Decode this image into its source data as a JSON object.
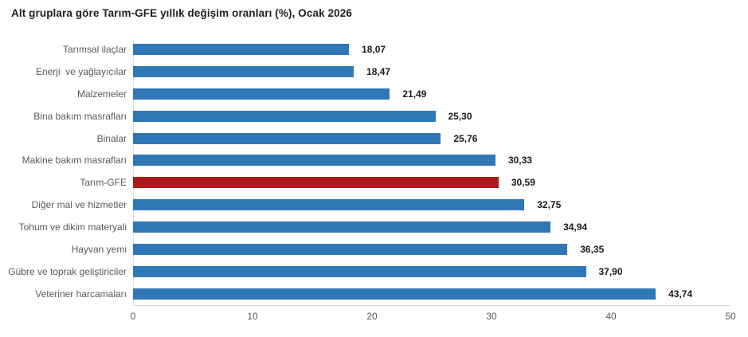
{
  "title": "Alt gruplara göre Tarım-GFE yıllık değişim oranları (%), Ocak 2026",
  "chart_data": {
    "type": "bar",
    "orientation": "horizontal",
    "title": "Alt gruplara göre Tarım-GFE yıllık değişim oranları (%), Ocak 2026",
    "categories": [
      "Tarımsal ilaçlar",
      "Enerji  ve yağlayıcılar",
      "Malzemeler",
      "Bina bakım masrafları",
      "Binalar",
      "Makine bakım masrafları",
      "Tarım-GFE",
      "Diğer mal ve hizmetler",
      "Tohum ve dikim materyali",
      "Hayvan yemi",
      "Gübre ve toprak geliştiriciler",
      "Veteriner harcamaları"
    ],
    "values": [
      18.07,
      18.47,
      21.49,
      25.3,
      25.76,
      30.33,
      30.59,
      32.75,
      34.94,
      36.35,
      37.9,
      43.74
    ],
    "value_labels": [
      "18,07",
      "18,47",
      "21,49",
      "25,30",
      "25,76",
      "30,33",
      "30,59",
      "32,75",
      "34,94",
      "36,35",
      "37,90",
      "43,74"
    ],
    "highlight_index": 6,
    "highlight_category": "Tarım-GFE",
    "xlim": [
      0,
      50
    ],
    "x_ticks": [
      0,
      10,
      20,
      30,
      40,
      50
    ],
    "grid": "off",
    "legend": "none",
    "colors": {
      "bar": "#3077B6",
      "highlight": "#AE1A1D",
      "value_text": "#1a1a1a",
      "category_text": "#595959",
      "tick_text": "#595959",
      "axis_line": "#D9D9D9",
      "zero_line": "#DEE4EB",
      "background": "#FFFFFF"
    }
  }
}
